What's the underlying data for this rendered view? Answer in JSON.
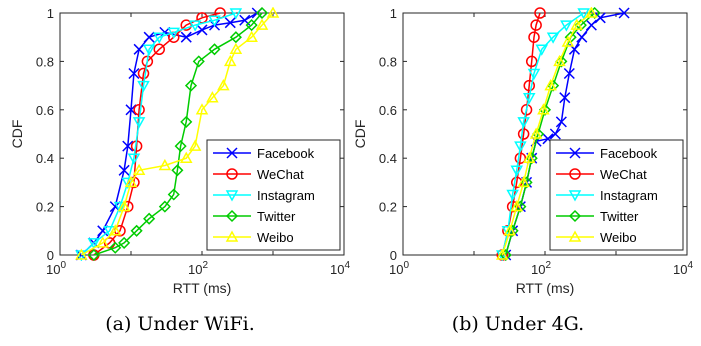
{
  "chart_data": [
    {
      "type": "line",
      "caption": "(a) Under WiFi.",
      "xlabel": "RTT (ms)",
      "ylabel": "CDF",
      "xscale": "log",
      "xlim": [
        1,
        10000
      ],
      "ylim": [
        0,
        1
      ],
      "xticks": [
        {
          "base": "10",
          "exp": "0"
        },
        {
          "base": "10",
          "exp": "2"
        },
        {
          "base": "10",
          "exp": "4"
        }
      ],
      "yticks": [
        "0",
        "0.2",
        "0.4",
        "0.6",
        "0.8",
        "1"
      ],
      "legend": "lower-right",
      "series": [
        {
          "name": "Facebook",
          "color": "#0000ff",
          "marker": "x",
          "points": [
            [
              2,
              0
            ],
            [
              3,
              0.05
            ],
            [
              4,
              0.1
            ],
            [
              6,
              0.2
            ],
            [
              8,
              0.35
            ],
            [
              9,
              0.45
            ],
            [
              10,
              0.6
            ],
            [
              11,
              0.75
            ],
            [
              13,
              0.85
            ],
            [
              18,
              0.9
            ],
            [
              30,
              0.92
            ],
            [
              60,
              0.9
            ],
            [
              100,
              0.93
            ],
            [
              150,
              0.95
            ],
            [
              250,
              0.96
            ],
            [
              400,
              0.97
            ],
            [
              600,
              1
            ]
          ]
        },
        {
          "name": "WeChat",
          "color": "#ff0000",
          "marker": "o",
          "points": [
            [
              3,
              0
            ],
            [
              5,
              0.05
            ],
            [
              7,
              0.1
            ],
            [
              9,
              0.2
            ],
            [
              11,
              0.3
            ],
            [
              12,
              0.45
            ],
            [
              13,
              0.6
            ],
            [
              15,
              0.75
            ],
            [
              17,
              0.8
            ],
            [
              25,
              0.85
            ],
            [
              40,
              0.9
            ],
            [
              60,
              0.95
            ],
            [
              100,
              0.98
            ],
            [
              180,
              1
            ]
          ]
        },
        {
          "name": "Instagram",
          "color": "#00ffff",
          "marker": "v",
          "points": [
            [
              2,
              0
            ],
            [
              3,
              0.05
            ],
            [
              5,
              0.1
            ],
            [
              7,
              0.2
            ],
            [
              9,
              0.3
            ],
            [
              11,
              0.4
            ],
            [
              13,
              0.55
            ],
            [
              15,
              0.7
            ],
            [
              18,
              0.85
            ],
            [
              25,
              0.9
            ],
            [
              40,
              0.92
            ],
            [
              80,
              0.95
            ],
            [
              150,
              0.97
            ],
            [
              300,
              1
            ]
          ]
        },
        {
          "name": "Twitter",
          "color": "#00cc00",
          "marker": "d",
          "points": [
            [
              3,
              0
            ],
            [
              6,
              0.03
            ],
            [
              8,
              0.05
            ],
            [
              12,
              0.1
            ],
            [
              18,
              0.15
            ],
            [
              30,
              0.2
            ],
            [
              40,
              0.25
            ],
            [
              45,
              0.35
            ],
            [
              50,
              0.45
            ],
            [
              60,
              0.55
            ],
            [
              70,
              0.7
            ],
            [
              90,
              0.8
            ],
            [
              150,
              0.85
            ],
            [
              300,
              0.9
            ],
            [
              500,
              0.95
            ],
            [
              700,
              1
            ]
          ]
        },
        {
          "name": "Weibo",
          "color": "#ffff00",
          "marker": "^",
          "points": [
            [
              2,
              0
            ],
            [
              4,
              0.05
            ],
            [
              6,
              0.1
            ],
            [
              8,
              0.2
            ],
            [
              10,
              0.3
            ],
            [
              13,
              0.35
            ],
            [
              30,
              0.37
            ],
            [
              60,
              0.4
            ],
            [
              80,
              0.45
            ],
            [
              100,
              0.6
            ],
            [
              140,
              0.65
            ],
            [
              200,
              0.7
            ],
            [
              250,
              0.8
            ],
            [
              300,
              0.85
            ],
            [
              500,
              0.9
            ],
            [
              700,
              0.95
            ],
            [
              1000,
              1
            ]
          ]
        }
      ]
    },
    {
      "type": "line",
      "caption": "(b) Under 4G.",
      "xlabel": "RTT (ms)",
      "ylabel": "CDF",
      "xscale": "log",
      "xlim": [
        1,
        10000
      ],
      "ylim": [
        0,
        1
      ],
      "xticks": [
        {
          "base": "10",
          "exp": "0"
        },
        {
          "base": "10",
          "exp": "2"
        },
        {
          "base": "10",
          "exp": "4"
        }
      ],
      "yticks": [
        "0",
        "0.2",
        "0.4",
        "0.6",
        "0.8",
        "1"
      ],
      "legend": "lower-right",
      "series": [
        {
          "name": "Facebook",
          "color": "#0000ff",
          "marker": "x",
          "points": [
            [
              28,
              0
            ],
            [
              35,
              0.1
            ],
            [
              45,
              0.2
            ],
            [
              55,
              0.3
            ],
            [
              65,
              0.4
            ],
            [
              75,
              0.47
            ],
            [
              110,
              0.48
            ],
            [
              140,
              0.5
            ],
            [
              170,
              0.55
            ],
            [
              190,
              0.65
            ],
            [
              220,
              0.75
            ],
            [
              260,
              0.85
            ],
            [
              330,
              0.9
            ],
            [
              450,
              0.95
            ],
            [
              600,
              0.98
            ],
            [
              1300,
              1
            ]
          ]
        },
        {
          "name": "WeChat",
          "color": "#ff0000",
          "marker": "o",
          "points": [
            [
              25,
              0
            ],
            [
              30,
              0.1
            ],
            [
              35,
              0.2
            ],
            [
              40,
              0.3
            ],
            [
              45,
              0.4
            ],
            [
              50,
              0.5
            ],
            [
              55,
              0.6
            ],
            [
              60,
              0.7
            ],
            [
              65,
              0.8
            ],
            [
              70,
              0.9
            ],
            [
              75,
              0.95
            ],
            [
              85,
              1
            ]
          ]
        },
        {
          "name": "Instagram",
          "color": "#00ffff",
          "marker": "v",
          "points": [
            [
              25,
              0
            ],
            [
              30,
              0.1
            ],
            [
              35,
              0.25
            ],
            [
              40,
              0.35
            ],
            [
              45,
              0.45
            ],
            [
              50,
              0.55
            ],
            [
              60,
              0.65
            ],
            [
              70,
              0.75
            ],
            [
              90,
              0.85
            ],
            [
              130,
              0.9
            ],
            [
              200,
              0.95
            ],
            [
              350,
              1
            ]
          ]
        },
        {
          "name": "Twitter",
          "color": "#00cc00",
          "marker": "d",
          "points": [
            [
              28,
              0
            ],
            [
              35,
              0.1
            ],
            [
              45,
              0.2
            ],
            [
              55,
              0.3
            ],
            [
              65,
              0.4
            ],
            [
              80,
              0.5
            ],
            [
              100,
              0.6
            ],
            [
              130,
              0.7
            ],
            [
              170,
              0.8
            ],
            [
              230,
              0.9
            ],
            [
              320,
              0.95
            ],
            [
              500,
              1
            ]
          ]
        },
        {
          "name": "Weibo",
          "color": "#ffff00",
          "marker": "^",
          "points": [
            [
              25,
              0
            ],
            [
              32,
              0.1
            ],
            [
              40,
              0.2
            ],
            [
              50,
              0.3
            ],
            [
              60,
              0.4
            ],
            [
              75,
              0.5
            ],
            [
              95,
              0.6
            ],
            [
              120,
              0.7
            ],
            [
              160,
              0.8
            ],
            [
              210,
              0.88
            ],
            [
              280,
              0.95
            ],
            [
              450,
              1
            ]
          ]
        }
      ]
    }
  ]
}
